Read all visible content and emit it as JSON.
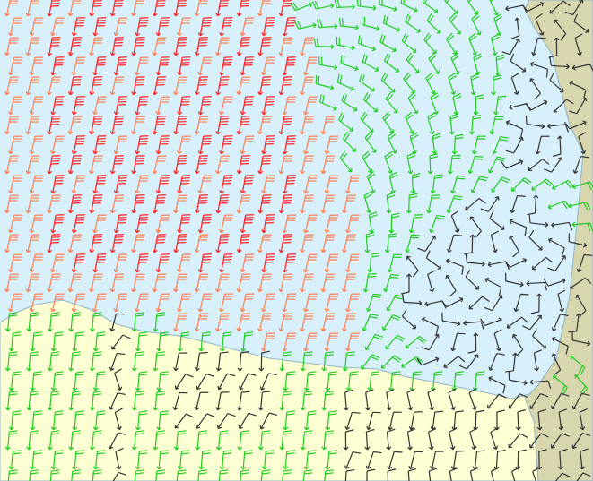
{
  "map": {
    "type": "wind-barb-map",
    "colors": {
      "sea": "#d7f0fc",
      "land_south": "#ffffd4",
      "land_east": "#d8d6ae",
      "coast": "#8fb6c8"
    },
    "barb_colors": {
      "strong": "#ff2222",
      "moderate": "#ff7f55",
      "light": "#22cc22",
      "calm": "#333333"
    }
  }
}
